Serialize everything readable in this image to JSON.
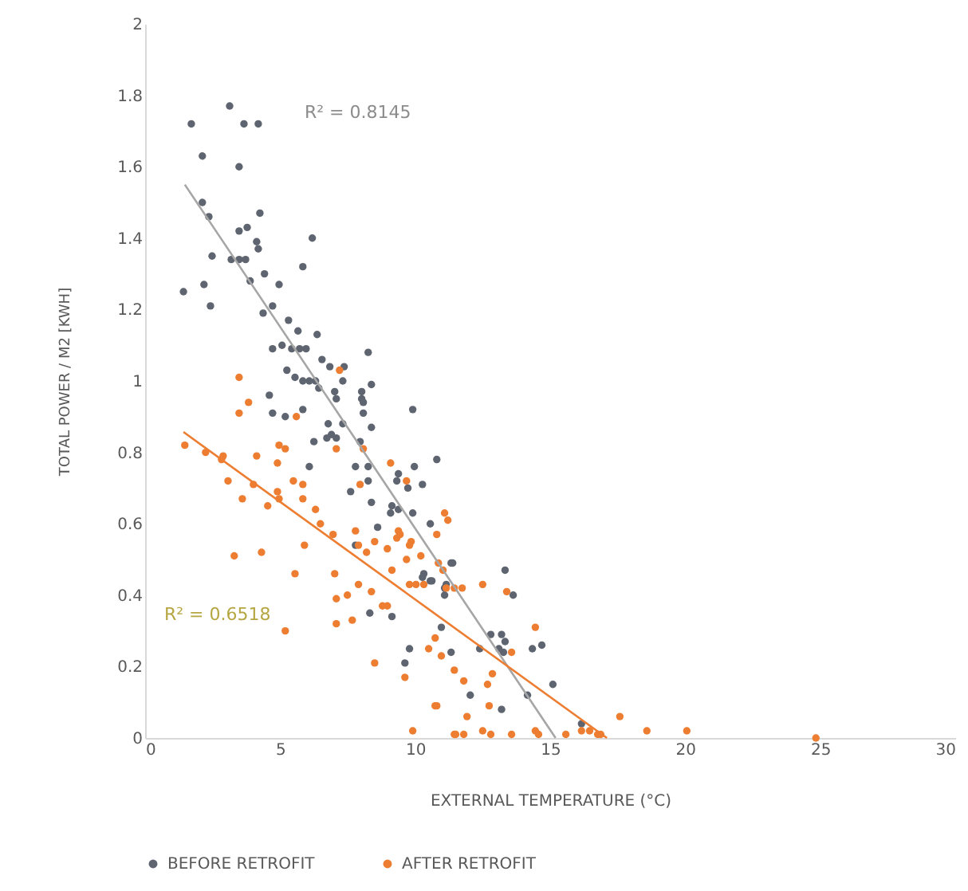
{
  "chart_data": {
    "type": "scatter",
    "xlabel": "EXTERNAL TEMPERATURE (°C)",
    "ylabel": "TOTAL POWER / M2 [KWH]",
    "xlim": [
      0,
      30
    ],
    "xticks": [
      0,
      5,
      10,
      15,
      20,
      25,
      30
    ],
    "ylim": [
      0,
      2
    ],
    "yticks": [
      0,
      0.2,
      0.4,
      0.6,
      0.8,
      1,
      1.2,
      1.4,
      1.6,
      1.8,
      2
    ],
    "grid": false,
    "legend": "bottom",
    "marker": "circle",
    "annotations": [
      "R² = 0.8145",
      "R² = 0.6518"
    ],
    "series": [
      {
        "name": "BEFORE RETROFIT",
        "color": "#5f6570",
        "x": [
          3.13,
          1.71,
          3.66,
          4.19,
          2.12,
          3.48,
          2.12,
          2.36,
          4.25,
          3.48,
          3.78,
          4.13,
          4.19,
          6.19,
          2.48,
          3.19,
          3.48,
          3.72,
          5.84,
          1.42,
          2.18,
          2.42,
          3.89,
          4.42,
          4.96,
          4.72,
          4.37,
          5.31,
          5.66,
          6.37,
          4.72,
          5.07,
          5.43,
          5.72,
          5.96,
          8.26,
          6.55,
          6.84,
          7.37,
          5.25,
          5.55,
          5.84,
          6.08,
          6.31,
          6.43,
          7.32,
          7.02,
          8.38,
          8.02,
          8.02,
          8.08,
          4.6,
          7.08,
          9.91,
          4.72,
          5.19,
          5.84,
          7.32,
          6.78,
          8.38,
          8.08,
          6.9,
          6.73,
          7.08,
          6.25,
          7.96,
          6.08,
          7.79,
          8.26,
          9.97,
          9.38,
          9.32,
          8.26,
          7.61,
          9.73,
          8.38,
          9.14,
          9.09,
          9.38,
          9.91,
          10.8,
          10.27,
          8.61,
          10.56,
          7.79,
          8.5,
          11.33,
          10.56,
          10.32,
          11.15,
          13.33,
          11.39,
          10.27,
          10.62,
          11.09,
          11.09,
          13.63,
          9.14,
          10.97,
          12.8,
          13.2,
          13.33,
          13.1,
          12.39,
          13.27,
          14.34,
          14.69,
          9.79,
          11.33,
          9.62,
          12.04,
          14.16,
          15.1,
          13.2,
          16.16,
          8.32
        ],
        "values": [
          1.77,
          1.72,
          1.72,
          1.72,
          1.63,
          1.6,
          1.5,
          1.46,
          1.47,
          1.42,
          1.43,
          1.39,
          1.37,
          1.4,
          1.35,
          1.34,
          1.34,
          1.34,
          1.32,
          1.25,
          1.27,
          1.21,
          1.28,
          1.3,
          1.27,
          1.21,
          1.19,
          1.17,
          1.14,
          1.13,
          1.09,
          1.1,
          1.09,
          1.09,
          1.09,
          1.08,
          1.06,
          1.04,
          1.04,
          1.03,
          1.01,
          1.0,
          1.0,
          1.0,
          0.98,
          1.0,
          0.97,
          0.99,
          0.97,
          0.95,
          0.94,
          0.96,
          0.95,
          0.92,
          0.91,
          0.9,
          0.92,
          0.88,
          0.88,
          0.87,
          0.91,
          0.85,
          0.84,
          0.84,
          0.83,
          0.83,
          0.76,
          0.76,
          0.76,
          0.76,
          0.74,
          0.72,
          0.72,
          0.69,
          0.7,
          0.66,
          0.65,
          0.63,
          0.64,
          0.63,
          0.78,
          0.71,
          0.59,
          0.6,
          0.54,
          null,
          0.49,
          0.44,
          0.46,
          0.43,
          0.47,
          0.49,
          0.45,
          0.44,
          0.42,
          0.4,
          0.4,
          0.34,
          0.31,
          0.29,
          0.29,
          0.27,
          0.25,
          0.25,
          0.24,
          0.25,
          0.26,
          0.25,
          0.24,
          0.21,
          0.12,
          0.12,
          0.15,
          0.08,
          0.04,
          0.35
        ]
      },
      {
        "name": "AFTER RETROFIT",
        "color": "#ed7d31",
        "x": [
          3.48,
          7.2,
          3.83,
          3.48,
          5.6,
          1.47,
          2.24,
          2.89,
          2.83,
          4.13,
          4.96,
          5.19,
          7.08,
          4.9,
          8.08,
          9.09,
          3.07,
          4.01,
          5.49,
          5.84,
          3.6,
          4.9,
          4.96,
          4.54,
          5.84,
          6.31,
          7.96,
          9.68,
          6.49,
          6.96,
          7.79,
          9.38,
          8.5,
          11.09,
          11.21,
          5.9,
          9.44,
          9.32,
          10.8,
          8.2,
          7.9,
          8.97,
          9.85,
          9.79,
          10.21,
          9.68,
          7.02,
          9.14,
          10.86,
          11.03,
          9.79,
          10.03,
          10.32,
          12.5,
          11.15,
          11.45,
          11.74,
          3.3,
          4.31,
          5.55,
          7.49,
          7.9,
          8.38,
          8.79,
          8.97,
          7.08,
          7.08,
          7.67,
          5.19,
          8.5,
          9.62,
          10.74,
          9.91,
          11.45,
          14.45,
          13.39,
          10.74,
          10.5,
          10.97,
          11.45,
          12.86,
          11.8,
          12.68,
          13.57,
          10.8,
          11.92,
          12.74,
          17.58,
          11.5,
          11.8,
          12.5,
          12.8,
          13.57,
          14.45,
          14.57,
          15.58,
          16.16,
          16.46,
          16.76,
          16.87,
          18.58,
          20.06,
          24.84
        ],
        "values": [
          1.01,
          1.03,
          0.94,
          0.91,
          0.9,
          0.82,
          0.8,
          0.79,
          0.78,
          0.79,
          0.82,
          0.81,
          0.81,
          0.77,
          0.81,
          0.77,
          0.72,
          0.71,
          0.72,
          0.71,
          0.67,
          0.69,
          0.67,
          0.65,
          0.67,
          0.64,
          0.71,
          0.72,
          0.6,
          0.57,
          0.58,
          0.58,
          0.55,
          0.63,
          0.61,
          0.54,
          0.57,
          0.56,
          0.57,
          0.52,
          0.54,
          0.53,
          0.55,
          0.54,
          0.51,
          0.5,
          0.46,
          0.47,
          0.49,
          0.47,
          0.43,
          0.43,
          0.43,
          0.43,
          0.42,
          0.42,
          0.42,
          0.51,
          0.52,
          0.46,
          0.4,
          0.43,
          0.41,
          0.37,
          0.37,
          0.39,
          0.32,
          0.33,
          0.3,
          0.21,
          0.17,
          0.09,
          0.02,
          0.01,
          0.31,
          0.41,
          0.28,
          0.25,
          0.23,
          0.19,
          0.18,
          0.16,
          0.15,
          0.24,
          0.09,
          0.06,
          0.09,
          0.06,
          0.01,
          0.01,
          0.02,
          0.01,
          0.01,
          0.02,
          0.01,
          0.01,
          0.02,
          0.02,
          0.01,
          0.01,
          0.02,
          0.02,
          0
        ]
      },
      {
        "type": "line",
        "marker": "none",
        "color": "#a6a6a6",
        "x": [
          1.47,
          15.2
        ],
        "values": [
          1.55,
          0
        ]
      },
      {
        "type": "line",
        "marker": "none",
        "color": "#ed7d31",
        "x": [
          1.42,
          17.1
        ],
        "values": [
          0.857,
          0
        ]
      }
    ]
  }
}
